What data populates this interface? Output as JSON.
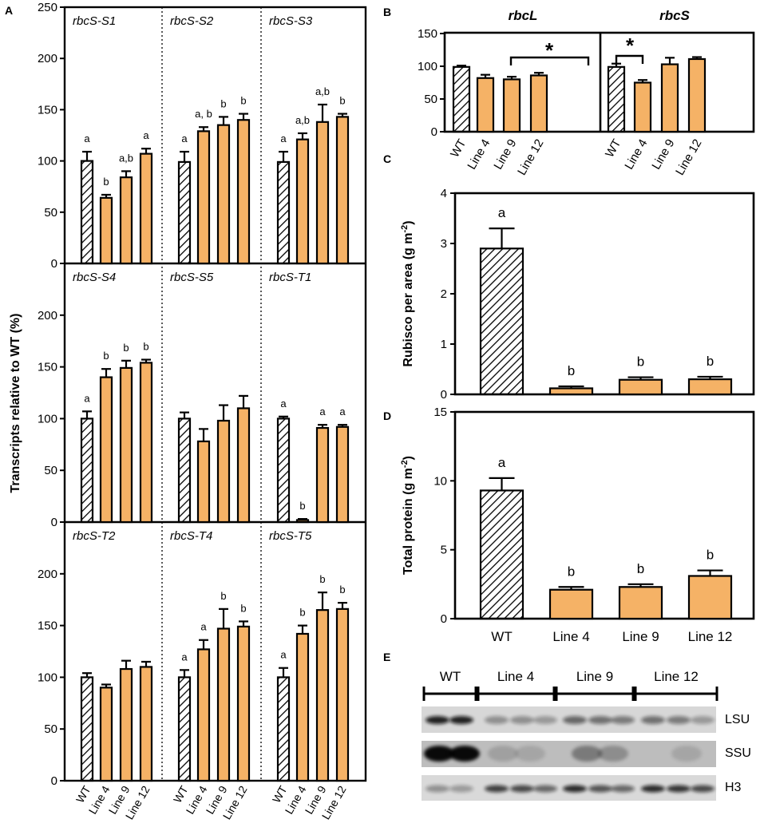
{
  "panel_letters": [
    "A",
    "B",
    "C",
    "D",
    "E"
  ],
  "colors": {
    "line_fill": "#F5B266",
    "wt_fill": "#ffffff",
    "stroke": "#000000"
  },
  "chart_data": [
    {
      "id": "A",
      "type": "bar",
      "ylabel": "Transcripts relative to WT (%)",
      "ylim": [
        0,
        250
      ],
      "yticks": [
        0,
        50,
        100,
        150,
        200,
        250
      ],
      "categories": [
        "WT",
        "Line 4",
        "Line 9",
        "Line 12"
      ],
      "rows": [
        {
          "groups": [
            {
              "title": "rbcS-S1",
              "values": [
                100,
                64,
                84,
                107
              ],
              "errors": [
                9,
                3,
                6,
                5
              ],
              "letters": [
                "a",
                "b",
                "a,b",
                "a"
              ]
            },
            {
              "title": "rbcS-S2",
              "values": [
                99,
                129,
                135,
                140
              ],
              "errors": [
                10,
                4,
                8,
                6
              ],
              "letters": [
                "a",
                "a, b",
                "b",
                "b"
              ]
            },
            {
              "title": "rbcS-S3",
              "values": [
                99,
                121,
                138,
                143
              ],
              "errors": [
                10,
                6,
                17,
                3
              ],
              "letters": [
                "a",
                "a,b",
                "a,b",
                "b"
              ]
            }
          ]
        },
        {
          "groups": [
            {
              "title": "rbcS-S4",
              "values": [
                100,
                140,
                149,
                154
              ],
              "errors": [
                7,
                8,
                7,
                3
              ],
              "letters": [
                "a",
                "b",
                "b",
                "b"
              ]
            },
            {
              "title": "rbcS-S5",
              "values": [
                100,
                78,
                98,
                110
              ],
              "errors": [
                6,
                12,
                15,
                12
              ],
              "letters": [
                "",
                "",
                "",
                ""
              ]
            },
            {
              "title": "rbcS-T1",
              "values": [
                100,
                2,
                91,
                92
              ],
              "errors": [
                2,
                1,
                3,
                2
              ],
              "letters": [
                "a",
                "b",
                "a",
                "a"
              ]
            }
          ]
        },
        {
          "groups": [
            {
              "title": "rbcS-T2",
              "values": [
                100,
                90,
                108,
                110
              ],
              "errors": [
                4,
                3,
                8,
                5
              ],
              "letters": [
                "",
                "",
                "",
                ""
              ]
            },
            {
              "title": "rbcS-T4",
              "values": [
                100,
                127,
                147,
                149
              ],
              "errors": [
                7,
                9,
                19,
                5
              ],
              "letters": [
                "a",
                "a",
                "b",
                "b"
              ]
            },
            {
              "title": "rbcS-T5",
              "values": [
                100,
                142,
                165,
                166
              ],
              "errors": [
                9,
                8,
                17,
                6
              ],
              "letters": [
                "a",
                "b",
                "b",
                "b"
              ]
            }
          ]
        }
      ]
    },
    {
      "id": "B",
      "type": "bar",
      "ylim": [
        0,
        150
      ],
      "yticks": [
        0,
        50,
        100,
        150
      ],
      "categories": [
        "WT",
        "Line 4",
        "Line 9",
        "Line 12"
      ],
      "groups": [
        {
          "title": "rbcL",
          "values": [
            99,
            82,
            80,
            86
          ],
          "errors": [
            2,
            5,
            4,
            4
          ]
        },
        {
          "title": "rbcS",
          "values": [
            99,
            75,
            103,
            111
          ],
          "errors": [
            5,
            4,
            10,
            3
          ]
        }
      ],
      "significance_marker": "*"
    },
    {
      "id": "C",
      "type": "bar",
      "ylabel": "Rubisco per area (g m-2)",
      "ylabel_main": "Rubisco per area (g m",
      "ylabel_sup": "-2",
      "ylabel_end": ")",
      "ylim": [
        0,
        4
      ],
      "yticks": [
        0,
        1,
        2,
        3,
        4
      ],
      "categories": [
        "WT",
        "Line 4",
        "Line 9",
        "Line 12"
      ],
      "values": [
        2.9,
        0.12,
        0.29,
        0.3
      ],
      "errors": [
        0.4,
        0.04,
        0.05,
        0.05
      ],
      "letters": [
        "a",
        "b",
        "b",
        "b"
      ]
    },
    {
      "id": "D",
      "type": "bar",
      "ylabel": "Total protein (g m-2)",
      "ylabel_main": "Total protein (g m",
      "ylabel_sup": "-2",
      "ylabel_end": ")",
      "ylim": [
        0,
        15
      ],
      "yticks": [
        0,
        5,
        10,
        15
      ],
      "categories": [
        "WT",
        "Line 4",
        "Line 9",
        "Line 12"
      ],
      "values": [
        9.3,
        2.1,
        2.3,
        3.1
      ],
      "errors": [
        0.9,
        0.2,
        0.2,
        0.4
      ],
      "letters": [
        "a",
        "b",
        "b",
        "b"
      ]
    }
  ],
  "blot": {
    "lane_groups": [
      "WT",
      "Line 4",
      "Line 9",
      "Line 12"
    ],
    "rows": [
      "LSU",
      "SSU",
      "H3"
    ]
  }
}
